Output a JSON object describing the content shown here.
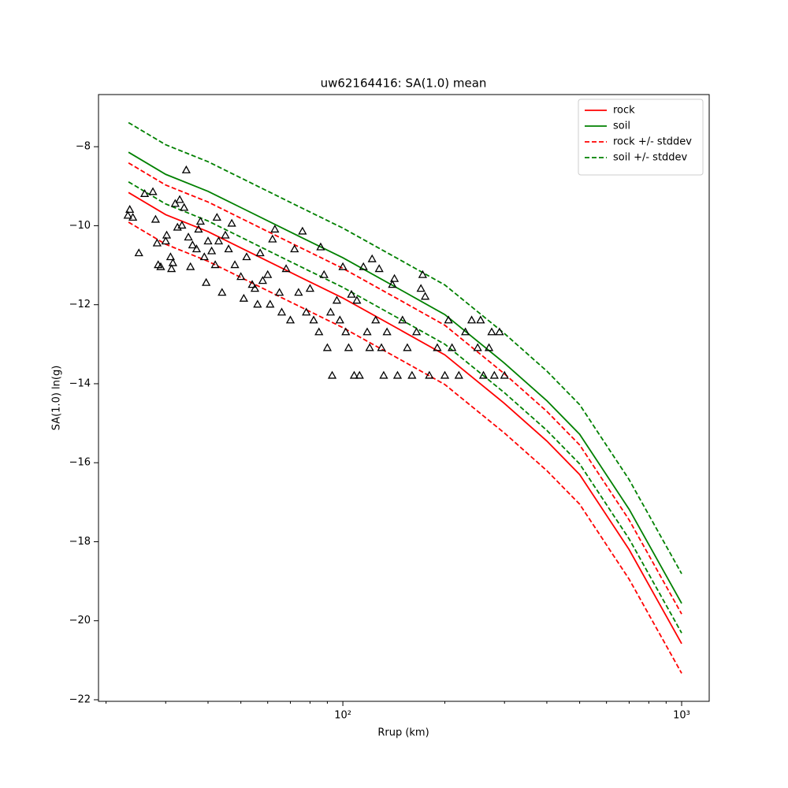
{
  "chart_data": {
    "type": "line",
    "title": "uw62164416: SA(1.0) mean",
    "xlabel": "Rrup (km)",
    "ylabel": "SA(1.0) ln(g)",
    "xscale": "log",
    "xlim": [
      19.0,
      1206
    ],
    "ylim": [
      -22.04,
      -6.68
    ],
    "xticks": [
      {
        "value": 100,
        "label": "10²"
      },
      {
        "value": 1000,
        "label": "10³"
      }
    ],
    "xminorticks": [
      20,
      30,
      40,
      50,
      60,
      70,
      80,
      90,
      200,
      300,
      400,
      500,
      600,
      700,
      800,
      900
    ],
    "yticks": [
      {
        "value": -22,
        "label": "−22"
      },
      {
        "value": -20,
        "label": "−20"
      },
      {
        "value": -18,
        "label": "−18"
      },
      {
        "value": -16,
        "label": "−16"
      },
      {
        "value": -14,
        "label": "−14"
      },
      {
        "value": -12,
        "label": "−12"
      },
      {
        "value": -10,
        "label": "−10"
      },
      {
        "value": -8,
        "label": "−8"
      }
    ],
    "legend": "upper right",
    "x": [
      23.3,
      30,
      40,
      50,
      70,
      100,
      150,
      200,
      300,
      400,
      500,
      700,
      1000
    ],
    "series": [
      {
        "name": "rock",
        "color": "#ff0000",
        "linestyle": "solid",
        "values": [
          -9.16,
          -9.72,
          -10.15,
          -10.56,
          -11.18,
          -11.83,
          -12.67,
          -13.27,
          -14.5,
          -15.45,
          -16.3,
          -18.2,
          -20.58
        ]
      },
      {
        "name": "soil",
        "color": "#008000",
        "linestyle": "solid",
        "values": [
          -8.14,
          -8.7,
          -9.13,
          -9.54,
          -10.16,
          -10.81,
          -11.65,
          -12.25,
          -13.48,
          -14.43,
          -15.28,
          -17.18,
          -19.56
        ]
      },
      {
        "name": "rock +/- stddev",
        "color": "#ff0000",
        "linestyle": "dashed",
        "upper": [
          -8.41,
          -8.97,
          -9.4,
          -9.81,
          -10.43,
          -11.08,
          -11.92,
          -12.52,
          -13.75,
          -14.7,
          -15.55,
          -17.45,
          -19.83
        ],
        "lower": [
          -9.91,
          -10.47,
          -10.9,
          -11.31,
          -11.93,
          -12.58,
          -13.42,
          -14.02,
          -15.25,
          -16.2,
          -17.05,
          -18.95,
          -21.33
        ]
      },
      {
        "name": "soil +/- stddev",
        "color": "#008000",
        "linestyle": "dashed",
        "upper": [
          -7.39,
          -7.95,
          -8.38,
          -8.79,
          -9.41,
          -10.06,
          -10.9,
          -11.5,
          -12.73,
          -13.68,
          -14.53,
          -16.43,
          -18.81
        ],
        "lower": [
          -8.89,
          -9.45,
          -9.88,
          -10.29,
          -10.91,
          -11.56,
          -12.4,
          -13.0,
          -14.23,
          -15.18,
          -16.03,
          -17.93,
          -20.31
        ]
      }
    ],
    "points": {
      "marker": "triangle",
      "color": "#000000",
      "x": [
        23.2,
        23.5,
        24,
        25,
        26,
        27.5,
        28,
        28.3,
        28.5,
        29,
        30,
        30.2,
        31,
        31.2,
        31.5,
        32,
        32.5,
        33,
        33.5,
        34,
        34.5,
        35,
        35.5,
        36,
        37,
        37.5,
        38,
        39,
        39.5,
        40,
        41,
        42,
        42.5,
        43,
        44,
        45,
        46,
        47,
        48,
        50,
        51,
        52,
        54,
        55,
        56,
        57,
        58,
        60,
        61,
        62,
        63,
        65,
        66,
        68,
        70,
        72,
        74,
        76,
        78,
        80,
        82,
        85,
        86,
        88,
        90,
        92,
        93,
        96,
        98,
        100,
        102,
        104,
        106,
        108,
        110,
        112,
        115,
        118,
        120,
        122,
        125,
        128,
        130,
        132,
        135,
        140,
        142,
        145,
        150,
        155,
        160,
        165,
        170,
        172,
        175,
        180,
        190,
        200,
        205,
        210,
        220,
        230,
        240,
        250,
        255,
        260,
        270,
        275,
        280,
        290,
        300
      ],
      "values": [
        -9.75,
        -9.6,
        -9.8,
        -10.7,
        -9.2,
        -9.15,
        -9.85,
        -10.45,
        -11.0,
        -11.05,
        -10.4,
        -10.25,
        -10.8,
        -11.1,
        -10.95,
        -9.45,
        -10.05,
        -9.35,
        -10.0,
        -9.55,
        -8.6,
        -10.3,
        -11.05,
        -10.5,
        -10.6,
        -10.1,
        -9.9,
        -10.8,
        -11.45,
        -10.4,
        -10.65,
        -11.0,
        -9.8,
        -10.4,
        -11.7,
        -10.25,
        -10.6,
        -9.95,
        -11.0,
        -11.3,
        -11.85,
        -10.8,
        -11.5,
        -11.6,
        -12.0,
        -10.7,
        -11.4,
        -11.25,
        -12.0,
        -10.35,
        -10.1,
        -11.7,
        -12.2,
        -11.1,
        -12.4,
        -10.6,
        -11.7,
        -10.15,
        -12.2,
        -11.6,
        -12.4,
        -12.7,
        -10.55,
        -11.25,
        -13.1,
        -12.2,
        -13.8,
        -11.9,
        -12.4,
        -11.05,
        -12.7,
        -13.1,
        -11.75,
        -13.8,
        -11.9,
        -13.8,
        -11.05,
        -12.7,
        -13.1,
        -10.85,
        -12.4,
        -11.1,
        -13.1,
        -13.8,
        -12.7,
        -11.5,
        -11.35,
        -13.8,
        -12.4,
        -13.1,
        -13.8,
        -12.7,
        -11.6,
        -11.25,
        -11.8,
        -13.8,
        -13.1,
        -13.8,
        -12.4,
        -13.1,
        -13.8,
        -12.7,
        -12.4,
        -13.1,
        -12.4,
        -13.8,
        -13.1,
        -12.7,
        -13.8,
        -12.7,
        -13.8
      ]
    }
  }
}
